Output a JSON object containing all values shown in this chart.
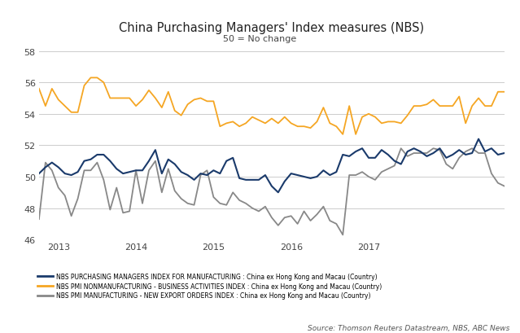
{
  "title": "China Purchasing Managers' Index measures (NBS)",
  "subtitle": "50 = No change",
  "source": "Source: Thomson Reuters Datastream, NBS, ABC News",
  "ylim": [
    46,
    58
  ],
  "yticks": [
    46,
    48,
    50,
    52,
    54,
    56,
    58
  ],
  "background_color": "#ffffff",
  "grid_color": "#cccccc",
  "legend": [
    "NBS PURCHASING MANAGERS INDEX FOR MANUFACTURING : China ex Hong Kong and Macau (Country)",
    "NBS PMI NONMANUFACTURING - BUSINESS ACTIVITIES INDEX : China ex Hong Kong and Macau (Country)",
    "NBS PMI MANUFACTURING - NEW EXPORT ORDERS INDEX : China ex Hong Kong and Macau (Country)"
  ],
  "colors": [
    "#1a3a6b",
    "#f5a623",
    "#888888"
  ],
  "x_labels": [
    "2013",
    "2014",
    "2015",
    "2016",
    "2017"
  ],
  "year_ticks": [
    3,
    15,
    27,
    39,
    51
  ],
  "manufacturing": [
    50.2,
    50.6,
    50.9,
    50.6,
    50.2,
    50.1,
    50.3,
    51.0,
    51.1,
    51.4,
    51.4,
    51.0,
    50.5,
    50.2,
    50.3,
    50.4,
    50.4,
    51.0,
    51.7,
    50.2,
    51.1,
    50.8,
    50.3,
    50.1,
    49.8,
    50.2,
    50.1,
    50.4,
    50.2,
    51.0,
    51.2,
    49.9,
    49.8,
    49.8,
    49.8,
    50.1,
    49.4,
    49.0,
    49.7,
    50.2,
    50.1,
    50.0,
    49.9,
    50.0,
    50.4,
    50.1,
    50.3,
    51.4,
    51.3,
    51.6,
    51.8,
    51.2,
    51.2,
    51.7,
    51.4,
    51.0,
    50.8,
    51.6,
    51.8,
    51.6,
    51.3,
    51.5,
    51.8,
    51.2,
    51.4,
    51.7,
    51.4,
    51.5,
    52.4,
    51.6,
    51.8,
    51.4,
    51.5
  ],
  "nonmanufacturing": [
    55.6,
    54.5,
    55.6,
    54.9,
    54.5,
    54.1,
    54.1,
    55.8,
    56.3,
    56.3,
    56.0,
    55.0,
    55.0,
    55.0,
    55.0,
    54.5,
    54.9,
    55.5,
    55.0,
    54.4,
    55.4,
    54.2,
    53.9,
    54.6,
    54.9,
    55.0,
    54.8,
    54.8,
    53.2,
    53.4,
    53.5,
    53.2,
    53.4,
    53.8,
    53.6,
    53.4,
    53.7,
    53.4,
    53.8,
    53.4,
    53.2,
    53.2,
    53.1,
    53.5,
    54.4,
    53.4,
    53.2,
    52.7,
    54.5,
    52.7,
    53.8,
    54.0,
    53.8,
    53.4,
    53.5,
    53.5,
    53.4,
    53.9,
    54.5,
    54.5,
    54.6,
    54.9,
    54.5,
    54.5,
    54.5,
    55.1,
    53.4,
    54.5,
    55.0,
    54.5,
    54.5,
    55.4,
    55.4
  ],
  "export_orders": [
    47.3,
    50.9,
    50.4,
    49.3,
    48.8,
    47.5,
    48.6,
    50.4,
    50.4,
    50.9,
    49.8,
    47.9,
    49.3,
    47.7,
    47.8,
    50.4,
    48.3,
    50.4,
    51.0,
    49.0,
    50.5,
    49.1,
    48.6,
    48.3,
    48.2,
    50.1,
    50.4,
    48.7,
    48.3,
    48.2,
    49.0,
    48.5,
    48.3,
    48.0,
    47.8,
    48.1,
    47.4,
    46.9,
    47.4,
    47.5,
    47.0,
    47.8,
    47.2,
    47.6,
    48.1,
    47.2,
    47.0,
    46.3,
    50.1,
    50.1,
    50.3,
    50.0,
    49.8,
    50.3,
    50.5,
    50.7,
    51.8,
    51.3,
    51.5,
    51.5,
    51.5,
    51.8,
    51.7,
    50.8,
    50.5,
    51.2,
    51.6,
    51.8,
    51.5,
    51.5,
    50.2,
    49.6,
    49.4
  ],
  "n_points": 73
}
